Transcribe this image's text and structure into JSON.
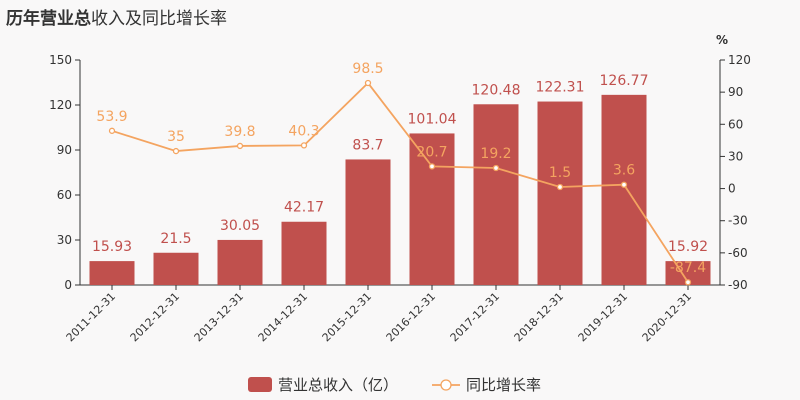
{
  "title_bold": "历年营业总",
  "title_rest": "收入及同比增长率",
  "chart_data": {
    "type": "bar+line",
    "categories": [
      "2011-12-31",
      "2012-12-31",
      "2013-12-31",
      "2014-12-31",
      "2015-12-31",
      "2016-12-31",
      "2017-12-31",
      "2018-12-31",
      "2019-12-31",
      "2020-12-31"
    ],
    "series": [
      {
        "name": "营业总收入（亿）",
        "type": "bar",
        "axis": "left",
        "values": [
          15.93,
          21.5,
          30.05,
          42.17,
          83.7,
          101.04,
          120.48,
          122.31,
          126.77,
          15.92
        ],
        "labels": [
          "15.93",
          "21.5",
          "30.05",
          "42.17",
          "83.7",
          "101.04",
          "120.48",
          "122.31",
          "126.77",
          "15.92"
        ],
        "color": "#c0504d"
      },
      {
        "name": "同比增长率",
        "type": "line",
        "axis": "right",
        "values": [
          53.9,
          35,
          39.8,
          40.3,
          98.5,
          20.7,
          19.2,
          1.5,
          3.6,
          -87.4
        ],
        "labels": [
          "53.9",
          "35",
          "39.8",
          "40.3",
          "98.5",
          "20.7",
          "19.2",
          "1.5",
          "3.6",
          "-87.4"
        ],
        "color": "#f4a460"
      }
    ],
    "left_axis": {
      "min": 0,
      "max": 150,
      "ticks": [
        "0",
        "30",
        "60",
        "90",
        "120",
        "150"
      ]
    },
    "right_axis": {
      "min": -90,
      "max": 120,
      "unit": "%",
      "ticks": [
        "-90",
        "-60",
        "-30",
        "0",
        "30",
        "60",
        "90",
        "120"
      ]
    },
    "grid": false,
    "legend_position": "bottom-center"
  }
}
